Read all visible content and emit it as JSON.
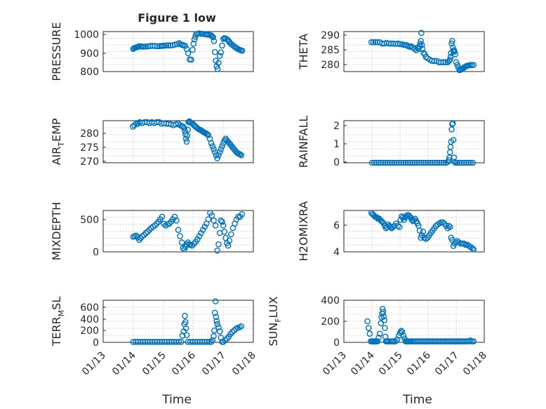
{
  "figure": {
    "title": "Figure 1 low",
    "xlabel": "Time",
    "marker_color": "#0072BD"
  },
  "chart_data": [
    {
      "type": "scatter",
      "ylabel": "PRESSURE",
      "ylim": [
        800,
        1030
      ],
      "yticks": [
        "800",
        "900",
        "1000"
      ],
      "xlim": [
        0,
        5
      ],
      "xticks": [
        "01/13",
        "01/14",
        "01/15",
        "01/16",
        "01/17",
        "01/18"
      ],
      "grid": true,
      "x": [
        1.0,
        1.03,
        1.06,
        1.1,
        1.13,
        1.17,
        1.2,
        1.25,
        1.3,
        1.36,
        1.42,
        1.49,
        1.56,
        1.64,
        1.72,
        1.8,
        1.87,
        1.93,
        1.98,
        2.04,
        2.1,
        2.17,
        2.24,
        2.32,
        2.39,
        2.46,
        2.53,
        2.58,
        2.63,
        2.68,
        2.73,
        2.78,
        2.83,
        2.88,
        2.93,
        2.98,
        3.01,
        3.04,
        3.07,
        3.1,
        3.15,
        3.2,
        3.26,
        3.3,
        3.35,
        3.4,
        3.45,
        3.5,
        3.56,
        3.6,
        3.63,
        3.66,
        3.69,
        3.72,
        3.75,
        3.78,
        3.81,
        3.84,
        3.88,
        3.92,
        3.96,
        4.0,
        4.04,
        4.08,
        4.13,
        4.17,
        4.2,
        4.24,
        4.29,
        4.34,
        4.39,
        4.43,
        4.47,
        4.51,
        4.55,
        4.59,
        4.63
      ],
      "y": [
        930,
        935,
        937,
        939,
        940,
        943,
        946,
        945,
        944,
        943,
        944,
        945,
        947,
        948,
        947,
        946,
        946,
        947,
        948,
        949,
        950,
        951,
        950,
        952,
        955,
        958,
        963,
        957,
        953,
        951,
        948,
        930,
        905,
        870,
        868,
        925,
        960,
        985,
        1000,
        1015,
        1018,
        1020,
        1018,
        1017,
        1016,
        1015,
        1013,
        1012,
        1010,
        1008,
        1003,
        998,
        975,
        912,
        862,
        830,
        815,
        850,
        890,
        910,
        950,
        988,
        992,
        990,
        985,
        978,
        970,
        962,
        955,
        948,
        941,
        936,
        932,
        928,
        925,
        922,
        920
      ]
    },
    {
      "type": "scatter",
      "ylabel": "THETA",
      "ylim": [
        277,
        292
      ],
      "yticks": [
        "280",
        "285",
        "290"
      ],
      "xlim": [
        0,
        5
      ],
      "xticks": [
        "01/13",
        "01/14",
        "01/15",
        "01/16",
        "01/17",
        "01/18"
      ],
      "grid": true,
      "x": [
        0.98,
        1.05,
        1.12,
        1.2,
        1.28,
        1.36,
        1.44,
        1.52,
        1.6,
        1.68,
        1.76,
        1.84,
        1.92,
        2.0,
        2.08,
        2.14,
        2.2,
        2.25,
        2.3,
        2.35,
        2.4,
        2.46,
        2.52,
        2.58,
        2.62,
        2.66,
        2.7,
        2.72,
        2.74,
        2.76,
        2.78,
        2.8,
        2.84,
        2.88,
        2.92,
        2.98,
        3.06,
        3.14,
        3.22,
        3.3,
        3.38,
        3.46,
        3.54,
        3.62,
        3.7,
        3.75,
        3.78,
        3.8,
        3.82,
        3.84,
        3.86,
        3.88,
        3.9,
        3.92,
        3.94,
        3.97,
        4.0,
        4.04,
        4.08,
        4.12,
        4.16,
        4.2,
        4.24,
        4.28,
        4.32,
        4.36,
        4.4,
        4.44,
        4.5,
        4.56,
        4.62
      ],
      "y": [
        288,
        288,
        288,
        288,
        288,
        287.5,
        287.5,
        287.8,
        287.5,
        287.5,
        287.5,
        287.4,
        287.5,
        287.3,
        287.2,
        287.0,
        287.0,
        286.8,
        286.5,
        286.3,
        286.5,
        286.0,
        285.5,
        285.0,
        286.0,
        285.5,
        286.5,
        287.5,
        288.5,
        291.5,
        287.0,
        285.5,
        284.0,
        283.5,
        282.5,
        282.0,
        281.5,
        281.0,
        281.0,
        281.0,
        280.5,
        280.5,
        280.5,
        280.5,
        280.5,
        281.0,
        281.5,
        282.5,
        284.0,
        287.5,
        288.5,
        286.0,
        284.5,
        285.0,
        284.5,
        283.5,
        280.5,
        279.5,
        278.5,
        277.5,
        277.7,
        278.0,
        278.2,
        278.5,
        278.8,
        279.0,
        279.2,
        279.3,
        279.5,
        279.4,
        279.5
      ]
    },
    {
      "type": "scatter",
      "ylabel": "AIR_TEMP",
      "ylim": [
        270,
        284
      ],
      "yticks": [
        "270",
        "275",
        "280"
      ],
      "xlim": [
        0,
        5
      ],
      "xticks": [
        "01/13",
        "01/14",
        "01/15",
        "01/16",
        "01/17",
        "01/18"
      ],
      "grid": true,
      "x": [
        0.99,
        1.04,
        1.1,
        1.16,
        1.22,
        1.3,
        1.38,
        1.46,
        1.54,
        1.62,
        1.7,
        1.78,
        1.86,
        1.94,
        2.02,
        2.1,
        2.18,
        2.26,
        2.34,
        2.42,
        2.5,
        2.56,
        2.62,
        2.66,
        2.7,
        2.72,
        2.74,
        2.76,
        2.78,
        2.8,
        2.82,
        2.84,
        2.87,
        2.9,
        2.94,
        2.98,
        3.02,
        3.06,
        3.1,
        3.14,
        3.18,
        3.22,
        3.26,
        3.3,
        3.34,
        3.38,
        3.42,
        3.46,
        3.5,
        3.55,
        3.6,
        3.64,
        3.68,
        3.72,
        3.76,
        3.8,
        3.84,
        3.88,
        3.92,
        3.96,
        4.0,
        4.04,
        4.08,
        4.12,
        4.16,
        4.2,
        4.24,
        4.28,
        4.32,
        4.36,
        4.4,
        4.44,
        4.48,
        4.52,
        4.56,
        4.6
      ],
      "y": [
        282,
        282.5,
        283,
        283,
        283.5,
        283.2,
        283.5,
        283.5,
        283.2,
        283.5,
        283.2,
        283.5,
        283.5,
        283.0,
        283.2,
        283.0,
        283.0,
        282.8,
        282.5,
        282.8,
        283.0,
        282.5,
        282.2,
        282.0,
        281.5,
        280.5,
        279.5,
        278.0,
        277.0,
        279.0,
        281.0,
        283.5,
        283.8,
        283.5,
        283.2,
        283.0,
        282.5,
        282.2,
        281.8,
        281.5,
        281.2,
        281.0,
        280.8,
        280.5,
        280.2,
        280.0,
        279.8,
        279.5,
        279.2,
        278.0,
        276.5,
        275.5,
        274.5,
        273.5,
        272.5,
        271.5,
        272.5,
        273.5,
        274.5,
        275.5,
        276.5,
        277.5,
        278.0,
        277.5,
        277.0,
        276.5,
        276.0,
        275.5,
        275.0,
        274.5,
        274.0,
        273.5,
        273.2,
        273.0,
        272.8,
        272.5
      ]
    },
    {
      "type": "scatter",
      "ylabel": "RAINFALL",
      "ylim": [
        0,
        2.4
      ],
      "yticks": [
        "0",
        "1",
        "2"
      ],
      "xlim": [
        0,
        5
      ],
      "xticks": [
        "01/13",
        "01/14",
        "01/15",
        "01/16",
        "01/17",
        "01/18"
      ],
      "grid": true,
      "x": [
        1.0,
        1.08,
        1.16,
        1.24,
        1.32,
        1.4,
        1.48,
        1.56,
        1.64,
        1.72,
        1.8,
        1.88,
        1.96,
        2.04,
        2.12,
        2.2,
        2.28,
        2.36,
        2.44,
        2.52,
        2.6,
        2.68,
        2.76,
        2.84,
        2.92,
        3.0,
        3.08,
        3.16,
        3.24,
        3.32,
        3.4,
        3.48,
        3.56,
        3.64,
        3.7,
        3.74,
        3.76,
        3.78,
        3.8,
        3.82,
        3.84,
        3.86,
        3.88,
        3.9,
        3.92,
        3.94,
        3.98,
        4.04,
        4.12,
        4.2,
        4.28,
        4.36,
        4.44,
        4.52,
        4.6
      ],
      "y": [
        0,
        0,
        0,
        0,
        0,
        0,
        0,
        0,
        0,
        0,
        0,
        0,
        0,
        0,
        0,
        0,
        0,
        0,
        0,
        0,
        0,
        0,
        0,
        0,
        0,
        0,
        0,
        0,
        0,
        0,
        0,
        0,
        0,
        0,
        0.05,
        0.15,
        0.3,
        0.6,
        0.9,
        1.2,
        1.9,
        2.2,
        2.25,
        1.3,
        0.3,
        0.05,
        0,
        0,
        0,
        0,
        0,
        0,
        0,
        0,
        0
      ]
    },
    {
      "type": "scatter",
      "ylabel": "MIXDEPTH",
      "ylim": [
        0,
        660
      ],
      "yticks": [
        "0",
        "500"
      ],
      "xlim": [
        0,
        5
      ],
      "xticks": [
        "01/13",
        "01/14",
        "01/15",
        "01/16",
        "01/17",
        "01/18"
      ],
      "grid": true,
      "x": [
        1.0,
        1.05,
        1.1,
        1.15,
        1.2,
        1.25,
        1.3,
        1.36,
        1.42,
        1.48,
        1.54,
        1.6,
        1.66,
        1.72,
        1.78,
        1.84,
        1.9,
        1.96,
        2.02,
        2.08,
        2.14,
        2.2,
        2.26,
        2.32,
        2.38,
        2.44,
        2.5,
        2.56,
        2.62,
        2.66,
        2.7,
        2.74,
        2.78,
        2.82,
        2.86,
        2.9,
        2.96,
        3.02,
        3.08,
        3.14,
        3.2,
        3.26,
        3.32,
        3.38,
        3.44,
        3.5,
        3.56,
        3.62,
        3.68,
        3.74,
        3.8,
        3.84,
        3.88,
        3.92,
        3.96,
        4.0,
        4.04,
        4.08,
        4.12,
        4.16,
        4.2,
        4.26,
        4.32,
        4.38,
        4.44,
        4.5,
        4.56,
        4.62
      ],
      "y": [
        240,
        250,
        260,
        230,
        190,
        220,
        250,
        270,
        300,
        320,
        350,
        380,
        400,
        420,
        450,
        480,
        520,
        560,
        450,
        420,
        440,
        450,
        480,
        520,
        560,
        500,
        350,
        250,
        150,
        60,
        40,
        80,
        120,
        150,
        120,
        110,
        100,
        130,
        160,
        200,
        250,
        300,
        350,
        400,
        450,
        520,
        620,
        580,
        500,
        420,
        20,
        120,
        300,
        500,
        480,
        420,
        320,
        220,
        140,
        100,
        180,
        280,
        380,
        450,
        520,
        560,
        560,
        600
      ]
    },
    {
      "type": "scatter",
      "ylabel": "H2OMIXRA",
      "ylim": [
        3.8,
        7.3
      ],
      "yticks": [
        "4",
        "6"
      ],
      "xlim": [
        0,
        5
      ],
      "xticks": [
        "01/13",
        "01/14",
        "01/15",
        "01/16",
        "01/17",
        "01/18"
      ],
      "grid": true,
      "x": [
        0.98,
        1.02,
        1.06,
        1.1,
        1.14,
        1.18,
        1.22,
        1.26,
        1.3,
        1.34,
        1.38,
        1.42,
        1.46,
        1.5,
        1.54,
        1.58,
        1.62,
        1.66,
        1.7,
        1.74,
        1.8,
        1.86,
        1.92,
        1.98,
        2.02,
        2.06,
        2.1,
        2.14,
        2.18,
        2.22,
        2.26,
        2.3,
        2.34,
        2.38,
        2.42,
        2.46,
        2.5,
        2.54,
        2.58,
        2.62,
        2.66,
        2.7,
        2.74,
        2.78,
        2.82,
        2.86,
        2.92,
        2.98,
        3.04,
        3.1,
        3.16,
        3.22,
        3.28,
        3.34,
        3.4,
        3.46,
        3.52,
        3.58,
        3.64,
        3.7,
        3.74,
        3.78,
        3.82,
        3.86,
        3.9,
        3.94,
        3.98,
        4.04,
        4.1,
        4.16,
        4.22,
        4.28,
        4.34,
        4.4,
        4.46,
        4.52,
        4.58,
        4.62
      ],
      "y": [
        7.1,
        7.0,
        6.9,
        6.8,
        6.75,
        6.7,
        6.6,
        6.6,
        6.5,
        6.4,
        6.3,
        6.2,
        6.0,
        5.8,
        5.9,
        6.1,
        6.0,
        5.9,
        5.8,
        5.9,
        6.0,
        6.2,
        6.0,
        5.9,
        6.5,
        6.8,
        6.7,
        6.5,
        6.7,
        6.8,
        6.9,
        6.9,
        6.8,
        6.7,
        6.5,
        6.4,
        6.5,
        6.6,
        6.4,
        6.2,
        6.0,
        5.6,
        5.0,
        5.2,
        5.5,
        5.0,
        4.9,
        5.0,
        5.2,
        5.4,
        5.6,
        5.8,
        6.0,
        6.1,
        6.2,
        6.3,
        6.3,
        6.2,
        6.0,
        5.8,
        6.0,
        5.9,
        5.0,
        4.8,
        4.3,
        4.5,
        4.6,
        4.7,
        4.6,
        4.5,
        4.5,
        4.5,
        4.4,
        4.4,
        4.3,
        4.2,
        4.1,
        4.0
      ]
    },
    {
      "type": "scatter",
      "ylabel": "TERR_MSL",
      "ylim": [
        -10,
        800
      ],
      "yticks": [
        "0",
        "200",
        "400",
        "600"
      ],
      "xlim": [
        0,
        5
      ],
      "xticks": [
        "01/13",
        "01/14",
        "01/15",
        "01/16",
        "01/17",
        "01/18"
      ],
      "grid": true,
      "x": [
        1.0,
        1.08,
        1.16,
        1.24,
        1.32,
        1.4,
        1.48,
        1.56,
        1.64,
        1.72,
        1.8,
        1.88,
        1.96,
        2.04,
        2.12,
        2.2,
        2.28,
        2.36,
        2.44,
        2.52,
        2.6,
        2.64,
        2.68,
        2.7,
        2.72,
        2.74,
        2.76,
        2.78,
        2.82,
        2.9,
        2.98,
        3.06,
        3.14,
        3.22,
        3.3,
        3.38,
        3.46,
        3.54,
        3.6,
        3.64,
        3.68,
        3.7,
        3.72,
        3.74,
        3.76,
        3.78,
        3.8,
        3.84,
        3.88,
        3.92,
        3.96,
        4.0,
        4.06,
        4.12,
        4.18,
        4.24,
        4.3,
        4.36,
        4.42,
        4.48,
        4.54,
        4.6
      ],
      "y": [
        0,
        0,
        0,
        0,
        0,
        0,
        0,
        0,
        0,
        0,
        0,
        0,
        0,
        0,
        0,
        0,
        0,
        0,
        0,
        0,
        0,
        120,
        200,
        340,
        500,
        380,
        260,
        130,
        0,
        0,
        0,
        0,
        0,
        0,
        0,
        0,
        0,
        0,
        0,
        30,
        110,
        220,
        560,
        780,
        480,
        400,
        340,
        280,
        200,
        80,
        0,
        0,
        30,
        60,
        100,
        150,
        190,
        220,
        250,
        270,
        280,
        300
      ]
    },
    {
      "type": "scatter",
      "ylabel": "SUN_FLUX",
      "ylim": [
        -10,
        430
      ],
      "yticks": [
        "0",
        "200",
        "400"
      ],
      "xlim": [
        0,
        5
      ],
      "xticks": [
        "01/13",
        "01/14",
        "01/15",
        "01/16",
        "01/17",
        "01/18"
      ],
      "grid": true,
      "x": [
        0.84,
        0.88,
        0.92,
        0.96,
        1.0,
        1.04,
        1.08,
        1.12,
        1.16,
        1.2,
        1.24,
        1.28,
        1.32,
        1.34,
        1.36,
        1.38,
        1.4,
        1.42,
        1.44,
        1.46,
        1.48,
        1.5,
        1.52,
        1.56,
        1.6,
        1.66,
        1.72,
        1.78,
        1.84,
        1.9,
        1.96,
        2.0,
        2.04,
        2.08,
        2.12,
        2.16,
        2.2,
        2.24,
        2.28,
        2.32,
        2.36,
        2.4,
        2.46,
        2.52,
        2.58,
        2.64,
        2.7,
        2.76,
        2.82,
        2.88,
        2.94,
        3.0,
        3.06,
        3.12,
        3.18,
        3.24,
        3.3,
        3.36,
        3.42,
        3.48,
        3.54,
        3.6,
        3.66,
        3.72,
        3.78,
        3.84,
        3.9,
        3.96,
        4.02,
        4.08,
        4.14,
        4.2,
        4.26,
        4.32,
        4.38,
        4.44,
        4.5,
        4.56,
        4.62
      ],
      "y": [
        210,
        140,
        80,
        0,
        0,
        0,
        0,
        0,
        0,
        0,
        40,
        80,
        190,
        250,
        290,
        340,
        310,
        260,
        220,
        140,
        50,
        0,
        0,
        0,
        0,
        0,
        0,
        0,
        0,
        20,
        60,
        90,
        110,
        100,
        60,
        30,
        0,
        0,
        0,
        0,
        0,
        0,
        0,
        0,
        0,
        0,
        0,
        0,
        0,
        0,
        0,
        0,
        0,
        0,
        0,
        0,
        0,
        0,
        0,
        0,
        0,
        0,
        0,
        0,
        0,
        0,
        0,
        0,
        0,
        0,
        0,
        0,
        0,
        0,
        0,
        0,
        10,
        0,
        0
      ]
    }
  ]
}
